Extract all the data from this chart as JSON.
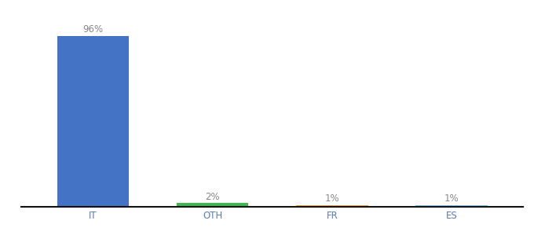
{
  "categories": [
    "IT",
    "OTH",
    "FR",
    "ES"
  ],
  "values": [
    96,
    2,
    1,
    1
  ],
  "bar_colors": [
    "#4472c4",
    "#3dba4e",
    "#f4a522",
    "#74c0e8"
  ],
  "labels": [
    "96%",
    "2%",
    "1%",
    "1%"
  ],
  "title_fontsize": 9,
  "label_fontsize": 8.5,
  "tick_fontsize": 8.5,
  "ylim": [
    0,
    107
  ],
  "background_color": "#ffffff",
  "bar_width": 0.6,
  "label_color": "#888888",
  "tick_color": "#5a7ab5",
  "spine_color": "#111111"
}
